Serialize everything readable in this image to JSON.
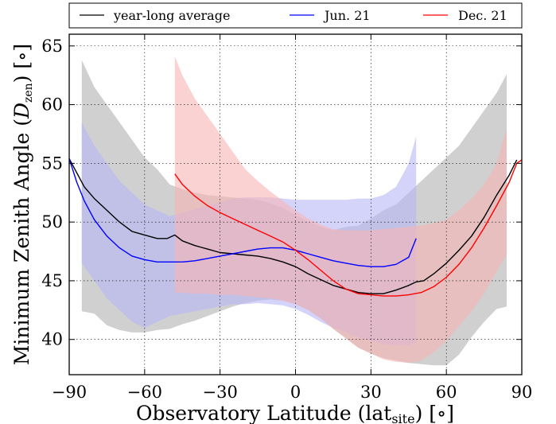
{
  "chart_data": {
    "type": "line",
    "xlabel": "Observatory Latitude (lat",
    "xlabel_sub": "site",
    "xlabel_unit": ") [∘]",
    "ylabel": "Minimum Zenith Angle (",
    "ylabel_sym": "D",
    "ylabel_sub": "zen",
    "ylabel_unit": ") [∘]",
    "xlim": [
      -90,
      90
    ],
    "ylim": [
      37,
      66
    ],
    "xticks": [
      -90,
      -60,
      -30,
      0,
      30,
      60,
      90
    ],
    "xtick_labels": [
      "−90",
      "−60",
      "−30",
      "0",
      "30",
      "60",
      "90"
    ],
    "yticks": [
      40,
      45,
      50,
      55,
      60,
      65
    ],
    "ytick_labels": [
      "40",
      "45",
      "50",
      "55",
      "60",
      "65"
    ],
    "grid": true,
    "legend_placement": "top",
    "series": [
      {
        "name": "year-long average",
        "color": "#000000",
        "band_color": "#b0b0b0",
        "line": [
          [
            -90,
            55.4
          ],
          [
            -87,
            54.2
          ],
          [
            -84,
            53.0
          ],
          [
            -80,
            52.0
          ],
          [
            -75,
            51.0
          ],
          [
            -70,
            50.0
          ],
          [
            -65,
            49.2
          ],
          [
            -60,
            48.9
          ],
          [
            -55,
            48.6
          ],
          [
            -51,
            48.6
          ],
          [
            -48,
            48.9
          ],
          [
            -45,
            48.4
          ],
          [
            -40,
            48.0
          ],
          [
            -35,
            47.7
          ],
          [
            -30,
            47.4
          ],
          [
            -25,
            47.3
          ],
          [
            -20,
            47.2
          ],
          [
            -15,
            47.1
          ],
          [
            -10,
            46.9
          ],
          [
            -5,
            46.6
          ],
          [
            0,
            46.2
          ],
          [
            5,
            45.6
          ],
          [
            10,
            45.1
          ],
          [
            15,
            44.6
          ],
          [
            20,
            44.3
          ],
          [
            25,
            44.0
          ],
          [
            30,
            43.9
          ],
          [
            35,
            43.9
          ],
          [
            40,
            44.2
          ],
          [
            45,
            44.6
          ],
          [
            48,
            44.9
          ],
          [
            51,
            45.0
          ],
          [
            55,
            45.6
          ],
          [
            60,
            46.5
          ],
          [
            65,
            47.6
          ],
          [
            70,
            48.8
          ],
          [
            75,
            50.4
          ],
          [
            80,
            52.3
          ],
          [
            85,
            54.0
          ],
          [
            88,
            55.3
          ]
        ],
        "band": [
          [
            -85,
            42.4,
            63.8
          ],
          [
            -80,
            42.2,
            61.5
          ],
          [
            -75,
            41.2,
            60.0
          ],
          [
            -70,
            40.8,
            58.5
          ],
          [
            -65,
            40.6,
            57.0
          ],
          [
            -60,
            40.6,
            55.5
          ],
          [
            -55,
            40.8,
            54.5
          ],
          [
            -50,
            40.9,
            53.2
          ],
          [
            -45,
            41.3,
            52.8
          ],
          [
            -40,
            41.6,
            52.5
          ],
          [
            -35,
            42.0,
            52.3
          ],
          [
            -30,
            42.4,
            52.2
          ],
          [
            -25,
            42.8,
            52.1
          ],
          [
            -20,
            43.1,
            52.0
          ],
          [
            -15,
            43.3,
            51.9
          ],
          [
            -10,
            43.4,
            51.6
          ],
          [
            -5,
            43.3,
            51.2
          ],
          [
            0,
            43.0,
            50.6
          ],
          [
            5,
            42.5,
            50.0
          ],
          [
            10,
            41.8,
            49.6
          ],
          [
            15,
            40.9,
            49.3
          ],
          [
            20,
            40.1,
            49.6
          ],
          [
            25,
            39.3,
            49.7
          ],
          [
            30,
            38.8,
            50.3
          ],
          [
            35,
            38.4,
            51.0
          ],
          [
            40,
            38.2,
            51.5
          ],
          [
            45,
            38.0,
            52.5
          ],
          [
            50,
            37.9,
            53.5
          ],
          [
            55,
            37.8,
            54.5
          ],
          [
            60,
            37.8,
            55.5
          ],
          [
            65,
            38.7,
            56.5
          ],
          [
            70,
            40.2,
            58.0
          ],
          [
            75,
            41.5,
            59.5
          ],
          [
            80,
            42.6,
            61.0
          ],
          [
            84,
            42.8,
            62.6
          ]
        ]
      },
      {
        "name": "Jun. 21",
        "color": "#0000ff",
        "band_color": "#b8b8f8",
        "line": [
          [
            -90,
            55.4
          ],
          [
            -87,
            53.4
          ],
          [
            -84,
            51.8
          ],
          [
            -80,
            50.2
          ],
          [
            -75,
            48.8
          ],
          [
            -70,
            47.8
          ],
          [
            -65,
            47.1
          ],
          [
            -60,
            46.8
          ],
          [
            -55,
            46.6
          ],
          [
            -50,
            46.6
          ],
          [
            -45,
            46.6
          ],
          [
            -40,
            46.7
          ],
          [
            -35,
            46.9
          ],
          [
            -30,
            47.1
          ],
          [
            -25,
            47.3
          ],
          [
            -20,
            47.5
          ],
          [
            -15,
            47.7
          ],
          [
            -10,
            47.8
          ],
          [
            -5,
            47.8
          ],
          [
            0,
            47.6
          ],
          [
            5,
            47.3
          ],
          [
            10,
            47.0
          ],
          [
            15,
            46.7
          ],
          [
            20,
            46.5
          ],
          [
            25,
            46.3
          ],
          [
            30,
            46.2
          ],
          [
            35,
            46.2
          ],
          [
            40,
            46.4
          ],
          [
            45,
            47.0
          ],
          [
            48,
            48.6
          ]
        ],
        "band": [
          [
            -85,
            46.5,
            58.5
          ],
          [
            -80,
            45.0,
            56.5
          ],
          [
            -75,
            43.5,
            55.0
          ],
          [
            -70,
            42.5,
            53.5
          ],
          [
            -65,
            41.5,
            52.5
          ],
          [
            -60,
            41.0,
            51.5
          ],
          [
            -55,
            41.5,
            51.0
          ],
          [
            -50,
            42.0,
            50.5
          ],
          [
            -45,
            42.2,
            50.8
          ],
          [
            -40,
            42.4,
            51.1
          ],
          [
            -35,
            42.6,
            51.4
          ],
          [
            -30,
            42.8,
            51.7
          ],
          [
            -25,
            43.0,
            52.0
          ],
          [
            -20,
            43.0,
            52.1
          ],
          [
            -15,
            43.1,
            52.1
          ],
          [
            -10,
            43.0,
            52.1
          ],
          [
            -5,
            42.9,
            52.0
          ],
          [
            0,
            42.6,
            51.9
          ],
          [
            5,
            42.1,
            51.9
          ],
          [
            10,
            41.5,
            51.9
          ],
          [
            15,
            41.0,
            51.9
          ],
          [
            20,
            40.6,
            51.9
          ],
          [
            25,
            40.2,
            52.0
          ],
          [
            30,
            39.9,
            52.0
          ],
          [
            35,
            39.6,
            52.3
          ],
          [
            40,
            39.5,
            53.0
          ],
          [
            45,
            39.5,
            55.0
          ],
          [
            48,
            39.8,
            57.3
          ]
        ]
      },
      {
        "name": "Dec. 21",
        "color": "#ff0000",
        "band_color": "#f6b4b4",
        "line": [
          [
            -48,
            54.1
          ],
          [
            -45,
            53.2
          ],
          [
            -40,
            52.2
          ],
          [
            -35,
            51.4
          ],
          [
            -30,
            50.8
          ],
          [
            -25,
            50.3
          ],
          [
            -20,
            49.8
          ],
          [
            -15,
            49.3
          ],
          [
            -10,
            48.8
          ],
          [
            -5,
            48.3
          ],
          [
            0,
            47.6
          ],
          [
            5,
            46.8
          ],
          [
            10,
            45.9
          ],
          [
            15,
            45.0
          ],
          [
            20,
            44.3
          ],
          [
            25,
            43.9
          ],
          [
            30,
            43.8
          ],
          [
            35,
            43.7
          ],
          [
            40,
            43.7
          ],
          [
            45,
            43.8
          ],
          [
            50,
            44.0
          ],
          [
            55,
            44.5
          ],
          [
            60,
            45.3
          ],
          [
            65,
            46.4
          ],
          [
            70,
            47.8
          ],
          [
            75,
            49.5
          ],
          [
            80,
            51.4
          ],
          [
            85,
            53.4
          ],
          [
            88,
            55.0
          ],
          [
            90,
            55.3
          ]
        ],
        "band": [
          [
            -48,
            44.0,
            64.1
          ],
          [
            -45,
            44.0,
            62.5
          ],
          [
            -40,
            43.9,
            60.5
          ],
          [
            -35,
            43.9,
            59.0
          ],
          [
            -30,
            43.8,
            57.5
          ],
          [
            -25,
            43.8,
            56.0
          ],
          [
            -20,
            43.7,
            54.5
          ],
          [
            -15,
            43.6,
            53.5
          ],
          [
            -10,
            43.5,
            52.6
          ],
          [
            -5,
            43.3,
            51.8
          ],
          [
            0,
            43.0,
            51.0
          ],
          [
            5,
            42.5,
            50.3
          ],
          [
            10,
            41.8,
            49.8
          ],
          [
            15,
            40.9,
            49.4
          ],
          [
            20,
            40.1,
            49.3
          ],
          [
            25,
            39.3,
            49.3
          ],
          [
            30,
            38.8,
            49.3
          ],
          [
            35,
            38.3,
            49.4
          ],
          [
            40,
            38.1,
            49.5
          ],
          [
            45,
            38.0,
            49.6
          ],
          [
            50,
            38.2,
            49.7
          ],
          [
            55,
            38.9,
            49.9
          ],
          [
            60,
            39.9,
            50.2
          ],
          [
            65,
            41.1,
            51.0
          ],
          [
            70,
            42.4,
            52.0
          ],
          [
            75,
            43.9,
            53.2
          ],
          [
            80,
            45.8,
            55.0
          ],
          [
            84,
            47.2,
            58.0
          ]
        ]
      }
    ]
  }
}
